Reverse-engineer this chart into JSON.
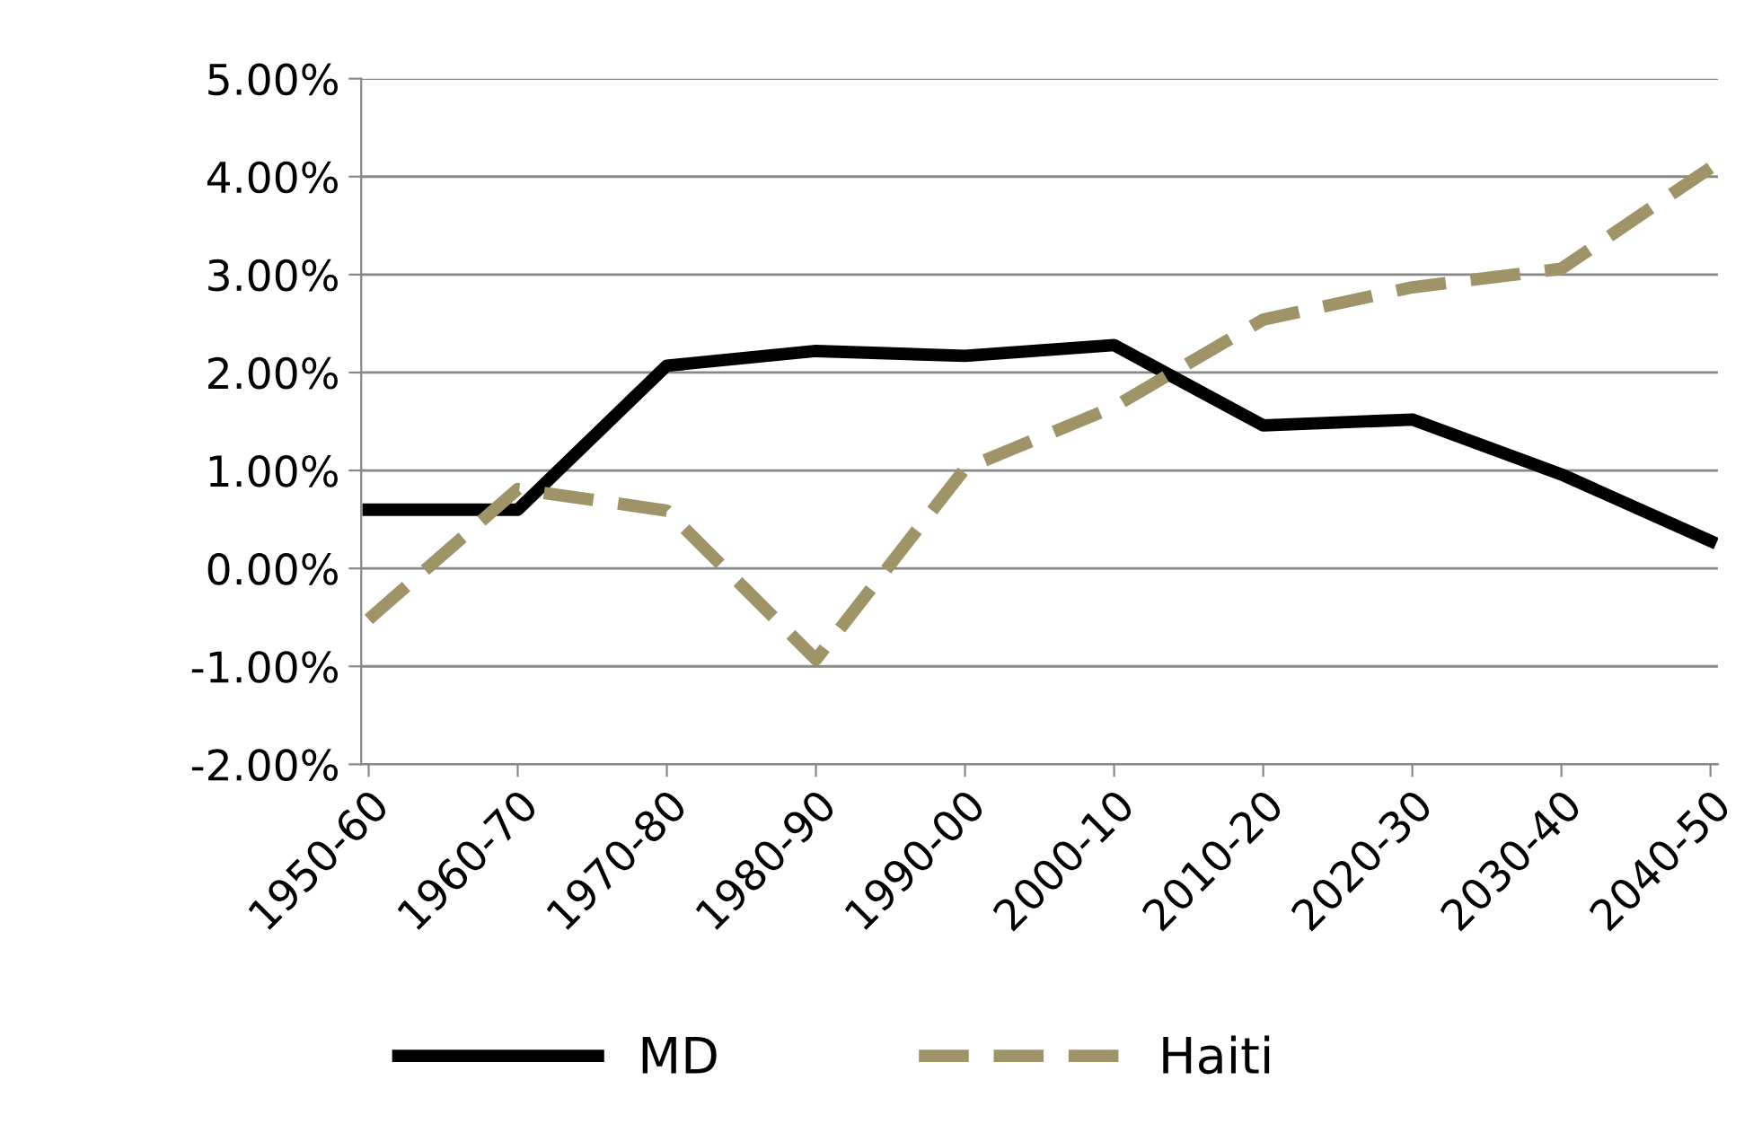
{
  "chart_data": {
    "type": "line",
    "categories": [
      "1950-60",
      "1960-70",
      "1970-80",
      "1980-90",
      "1990-00",
      "2000-10",
      "2010-20",
      "2020-30",
      "2030-40",
      "2040-50"
    ],
    "series": [
      {
        "name": "MD",
        "color": "#000000",
        "line_style": "solid",
        "values": [
          0.6,
          0.6,
          2.07,
          2.22,
          2.17,
          2.28,
          1.46,
          1.52,
          0.96,
          0.28
        ]
      },
      {
        "name": "Haiti",
        "color": "#9e9467",
        "line_style": "dashed",
        "values": [
          -0.52,
          0.81,
          0.59,
          -0.93,
          1.02,
          1.65,
          2.54,
          2.87,
          3.06,
          4.09
        ]
      }
    ],
    "ylim": [
      -2,
      5
    ],
    "yticks": [
      {
        "value": -2,
        "label": "-2.00%"
      },
      {
        "value": -1,
        "label": "-1.00%"
      },
      {
        "value": 0,
        "label": "0.00%"
      },
      {
        "value": 1,
        "label": "1.00%"
      },
      {
        "value": 2,
        "label": "2.00%"
      },
      {
        "value": 3,
        "label": "3.00%"
      },
      {
        "value": 4,
        "label": "4.00%"
      },
      {
        "value": 5,
        "label": "5.00%"
      }
    ],
    "grid": "y",
    "legend": "bottom",
    "marker": "none"
  }
}
